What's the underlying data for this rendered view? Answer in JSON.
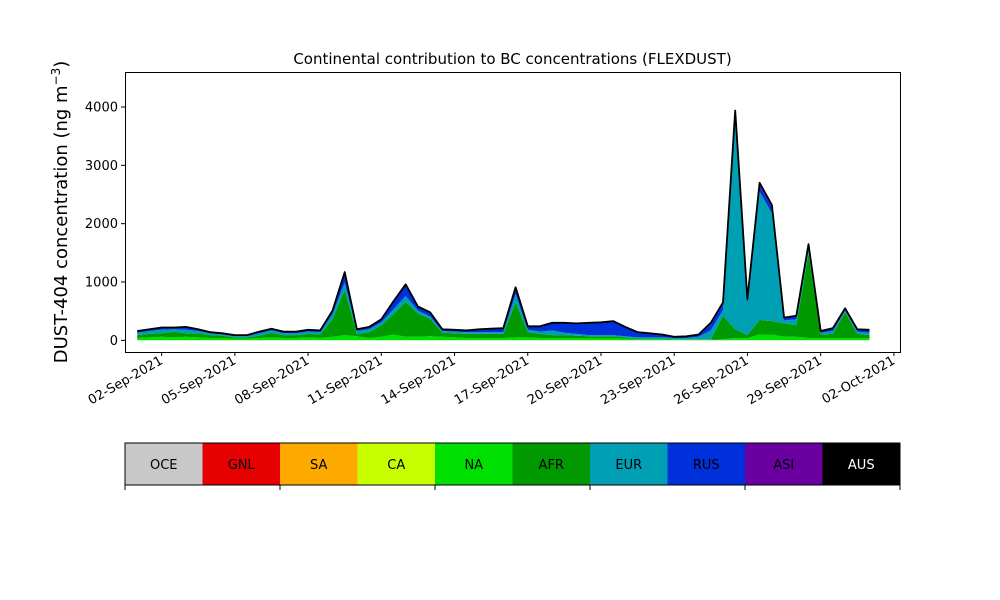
{
  "chart_data": {
    "type": "area",
    "stacked": true,
    "title": "Continental contribution to BC concentrations (FLEXDUST)",
    "ylabel_main": "DUST-404 concentration (ng m",
    "ylabel_sup": "−3",
    "ylabel_close": ")",
    "ylim": [
      -200,
      4600
    ],
    "yticks": [
      0,
      1000,
      2000,
      3000,
      4000
    ],
    "xlim": [
      "2021-08-31T12:00",
      "2021-10-02T06:00"
    ],
    "xticks": [
      {
        "date": "2021-09-02",
        "label": "02-Sep-2021"
      },
      {
        "date": "2021-09-05",
        "label": "05-Sep-2021"
      },
      {
        "date": "2021-09-08",
        "label": "08-Sep-2021"
      },
      {
        "date": "2021-09-11",
        "label": "11-Sep-2021"
      },
      {
        "date": "2021-09-14",
        "label": "14-Sep-2021"
      },
      {
        "date": "2021-09-17",
        "label": "17-Sep-2021"
      },
      {
        "date": "2021-09-20",
        "label": "20-Sep-2021"
      },
      {
        "date": "2021-09-23",
        "label": "23-Sep-2021"
      },
      {
        "date": "2021-09-26",
        "label": "26-Sep-2021"
      },
      {
        "date": "2021-09-29",
        "label": "29-Sep-2021"
      },
      {
        "date": "2021-10-02",
        "label": "02-Oct-2021"
      }
    ],
    "legend": [
      {
        "name": "OCE",
        "color": "#c8c8c8"
      },
      {
        "name": "GNL",
        "color": "#e60000"
      },
      {
        "name": "SA",
        "color": "#ffaa00"
      },
      {
        "name": "CA",
        "color": "#c8ff00"
      },
      {
        "name": "NA",
        "color": "#00e000"
      },
      {
        "name": "AFR",
        "color": "#009900"
      },
      {
        "name": "EUR",
        "color": "#00a0b4"
      },
      {
        "name": "RUS",
        "color": "#0030dc"
      },
      {
        "name": "ASI",
        "color": "#6a00a0"
      },
      {
        "name": "AUS",
        "color": "#000000"
      }
    ],
    "total_color": "#000000",
    "x": [
      "2021-09-01T00:00",
      "2021-09-01T12:00",
      "2021-09-02T00:00",
      "2021-09-02T12:00",
      "2021-09-03T00:00",
      "2021-09-03T12:00",
      "2021-09-04T00:00",
      "2021-09-04T12:00",
      "2021-09-05T00:00",
      "2021-09-05T12:00",
      "2021-09-06T00:00",
      "2021-09-06T12:00",
      "2021-09-07T00:00",
      "2021-09-07T12:00",
      "2021-09-08T00:00",
      "2021-09-08T12:00",
      "2021-09-09T00:00",
      "2021-09-09T12:00",
      "2021-09-10T00:00",
      "2021-09-10T12:00",
      "2021-09-11T00:00",
      "2021-09-11T12:00",
      "2021-09-12T00:00",
      "2021-09-12T12:00",
      "2021-09-13T00:00",
      "2021-09-13T12:00",
      "2021-09-14T00:00",
      "2021-09-14T12:00",
      "2021-09-15T00:00",
      "2021-09-15T12:00",
      "2021-09-16T00:00",
      "2021-09-16T12:00",
      "2021-09-17T00:00",
      "2021-09-17T12:00",
      "2021-09-18T00:00",
      "2021-09-18T12:00",
      "2021-09-19T00:00",
      "2021-09-19T12:00",
      "2021-09-20T00:00",
      "2021-09-20T12:00",
      "2021-09-21T00:00",
      "2021-09-21T12:00",
      "2021-09-22T00:00",
      "2021-09-22T12:00",
      "2021-09-23T00:00",
      "2021-09-23T12:00",
      "2021-09-24T00:00",
      "2021-09-24T12:00",
      "2021-09-25T00:00",
      "2021-09-25T12:00",
      "2021-09-26T00:00",
      "2021-09-26T12:00",
      "2021-09-27T00:00",
      "2021-09-27T12:00",
      "2021-09-28T00:00",
      "2021-09-28T12:00",
      "2021-09-29T00:00",
      "2021-09-29T12:00",
      "2021-09-30T00:00",
      "2021-09-30T12:00",
      "2021-10-01T00:00"
    ],
    "series": [
      {
        "name": "NA",
        "values": [
          40,
          50,
          60,
          50,
          60,
          50,
          40,
          40,
          30,
          30,
          40,
          50,
          40,
          40,
          50,
          40,
          60,
          90,
          70,
          40,
          60,
          100,
          60,
          60,
          70,
          60,
          50,
          40,
          40,
          40,
          40,
          50,
          50,
          40,
          40,
          40,
          40,
          40,
          40,
          40,
          30,
          20,
          20,
          20,
          10,
          10,
          10,
          10,
          20,
          40,
          40,
          100,
          100,
          60,
          60,
          40,
          40,
          40,
          40,
          40,
          40
        ]
      },
      {
        "name": "AFR",
        "values": [
          50,
          60,
          60,
          100,
          60,
          70,
          50,
          40,
          20,
          20,
          40,
          80,
          50,
          50,
          60,
          60,
          300,
          780,
          40,
          100,
          200,
          350,
          600,
          400,
          300,
          70,
          70,
          70,
          70,
          70,
          70,
          600,
          90,
          70,
          50,
          50,
          40,
          30,
          30,
          30,
          20,
          10,
          10,
          10,
          10,
          10,
          10,
          10,
          400,
          150,
          50,
          250,
          230,
          230,
          200,
          1450,
          60,
          70,
          440,
          70,
          50
        ]
      },
      {
        "name": "EUR",
        "values": [
          40,
          50,
          60,
          40,
          60,
          40,
          30,
          20,
          20,
          20,
          40,
          40,
          30,
          30,
          40,
          40,
          90,
          120,
          50,
          50,
          50,
          80,
          100,
          50,
          40,
          30,
          30,
          30,
          30,
          30,
          30,
          140,
          40,
          40,
          80,
          40,
          30,
          20,
          20,
          20,
          20,
          20,
          20,
          20,
          20,
          20,
          40,
          150,
          100,
          3600,
          500,
          2200,
          1850,
          50,
          100,
          100,
          30,
          50,
          30,
          40,
          40
        ]
      },
      {
        "name": "RUS",
        "values": [
          20,
          20,
          30,
          20,
          40,
          20,
          10,
          10,
          10,
          10,
          20,
          20,
          20,
          20,
          20,
          20,
          50,
          150,
          20,
          30,
          40,
          120,
          180,
          60,
          60,
          20,
          20,
          20,
          40,
          50,
          60,
          100,
          50,
          80,
          120,
          160,
          170,
          200,
          210,
          230,
          150,
          80,
          60,
          40,
          10,
          20,
          30,
          100,
          100,
          100,
          100,
          100,
          100,
          40,
          50,
          50,
          20,
          40,
          30,
          30,
          40
        ]
      },
      {
        "name": "ASI",
        "values": [
          10,
          10,
          10,
          10,
          10,
          10,
          10,
          10,
          10,
          10,
          10,
          10,
          10,
          10,
          10,
          10,
          10,
          30,
          10,
          10,
          10,
          20,
          20,
          10,
          10,
          10,
          10,
          10,
          10,
          10,
          10,
          20,
          10,
          10,
          10,
          10,
          10,
          10,
          10,
          10,
          10,
          10,
          10,
          10,
          10,
          10,
          10,
          30,
          30,
          50,
          20,
          50,
          40,
          10,
          10,
          10,
          10,
          10,
          10,
          10,
          10
        ]
      }
    ]
  }
}
